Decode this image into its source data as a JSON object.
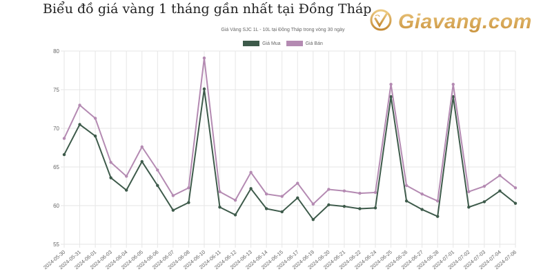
{
  "header": {
    "title": "Biểu đồ giá vàng 1 tháng gần nhất tại Đồng Tháp",
    "logo_text": "Giavang.com",
    "logo_icon": "gold-check-circle-icon"
  },
  "colors": {
    "mua": "#3d5a4a",
    "ban": "#b48ab2",
    "grid": "#e6e6e6",
    "logo_gold": "#d8a550"
  },
  "chart_data": {
    "type": "line",
    "title": "Giá Vàng SJC 1L - 10L tại Đồng Tháp trong vòng 30 ngày",
    "xlabel": "",
    "ylabel": "",
    "ylim": [
      55,
      80
    ],
    "yticks": [
      55,
      60,
      65,
      70,
      75,
      80
    ],
    "grid": true,
    "legend_position": "top",
    "categories": [
      "2024-05-30",
      "2024-05-31",
      "2024-06-01",
      "2024-06-03",
      "2024-06-04",
      "2024-06-05",
      "2024-06-06",
      "2024-06-07",
      "2024-06-08",
      "2024-06-10",
      "2024-06-11",
      "2024-06-12",
      "2024-06-13",
      "2024-06-14",
      "2024-06-15",
      "2024-06-17",
      "2024-06-19",
      "2024-06-20",
      "2024-06-21",
      "2024-06-22",
      "2024-06-24",
      "2024-06-25",
      "2024-06-26",
      "2024-06-27",
      "2024-06-28",
      "2024-07-01",
      "2024-07-02",
      "2024-07-03",
      "2024-07-04",
      "2024-07-06"
    ],
    "series": [
      {
        "name": "Giá Mua",
        "color": "#3d5a4a",
        "values": [
          66.6,
          70.5,
          69.0,
          63.6,
          62.0,
          65.7,
          62.6,
          59.4,
          60.4,
          75.1,
          59.8,
          58.8,
          62.2,
          59.6,
          59.2,
          61.0,
          58.2,
          60.1,
          59.9,
          59.6,
          59.7,
          74.1,
          60.6,
          59.5,
          58.6,
          74.1,
          59.8,
          60.5,
          61.9,
          60.3
        ]
      },
      {
        "name": "Giá Bán",
        "color": "#b48ab2",
        "values": [
          68.7,
          73.0,
          71.3,
          65.6,
          63.8,
          67.6,
          64.6,
          61.3,
          62.3,
          79.1,
          61.8,
          60.7,
          64.3,
          61.5,
          61.2,
          62.9,
          60.2,
          62.1,
          61.9,
          61.6,
          61.7,
          75.7,
          62.6,
          61.5,
          60.6,
          75.7,
          61.8,
          62.5,
          63.9,
          62.3
        ]
      }
    ]
  }
}
